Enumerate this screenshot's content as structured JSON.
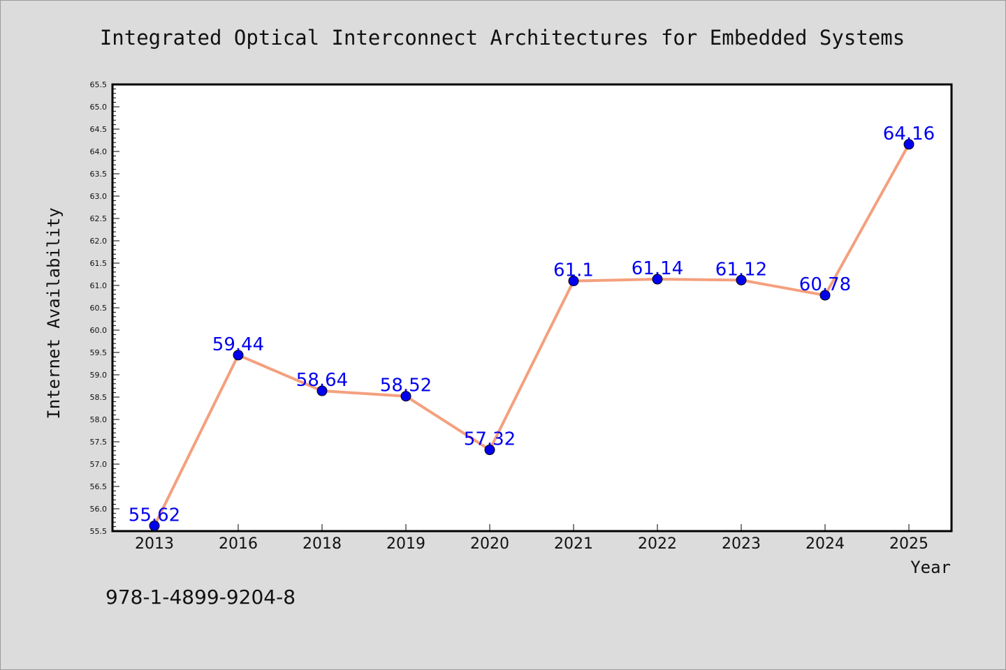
{
  "chart_data": {
    "type": "line",
    "title": "Integrated Optical Interconnect Architectures for Embedded Systems",
    "xlabel": "Year",
    "ylabel": "Internet Availability",
    "categories": [
      "2013",
      "2016",
      "2018",
      "2019",
      "2020",
      "2021",
      "2022",
      "2023",
      "2024",
      "2025"
    ],
    "series": [
      {
        "values": [
          55.62,
          59.44,
          58.64,
          58.52,
          57.32,
          61.1,
          61.14,
          61.12,
          60.78,
          64.16
        ],
        "data_labels": [
          "55.62",
          "59.44",
          "58.64",
          "58.52",
          "57.32",
          "61.1",
          "61.14",
          "61.12",
          "60.78",
          "64.16"
        ],
        "line_color": "#f4a07e",
        "marker_color": "#0000ee"
      }
    ],
    "ylim": [
      55.5,
      65.5
    ],
    "yticks": [
      "55.5",
      "56.0",
      "56.5",
      "57.0",
      "57.5",
      "58.0",
      "58.5",
      "59.0",
      "59.5",
      "60.0",
      "60.5",
      "61.0",
      "61.5",
      "62.0",
      "62.5",
      "63.0",
      "63.5",
      "64.0",
      "64.5",
      "65.0",
      "65.5"
    ],
    "grid": false,
    "legend": "none"
  },
  "footer": {
    "isbn": "978-1-4899-9204-8"
  },
  "colors": {
    "background": "#dcdcdc",
    "plot_area": "#ffffff",
    "line": "#f4a07e",
    "marker": "#0000ee",
    "label": "#0000ee"
  }
}
